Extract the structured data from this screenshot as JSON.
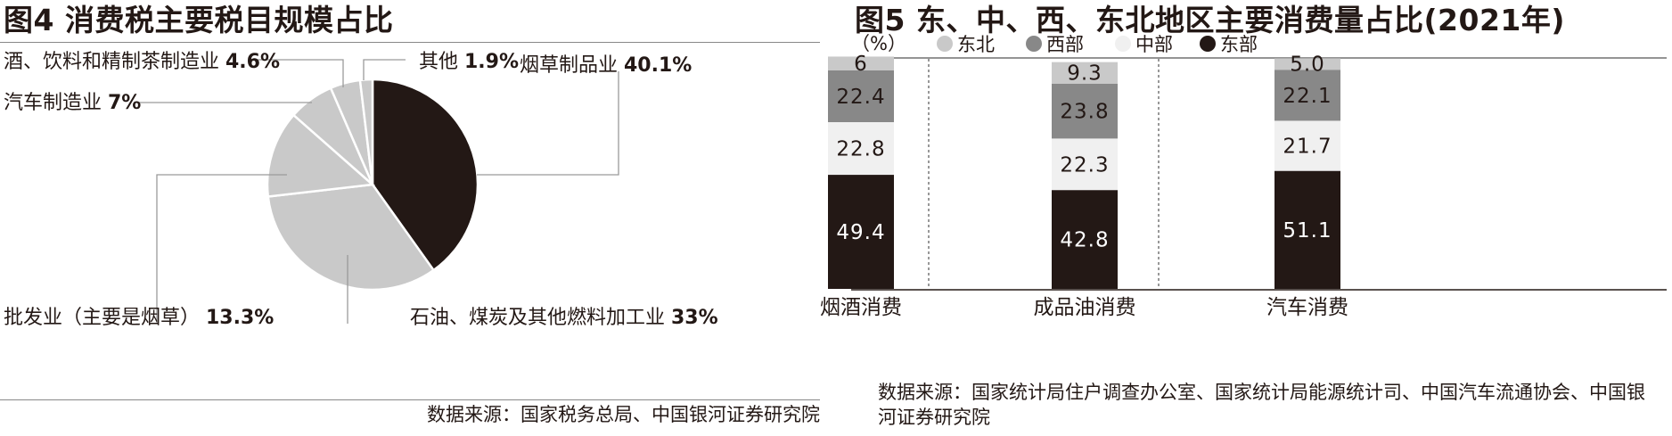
{
  "chart_data": [
    {
      "type": "pie",
      "title": "图4 消费税主要税目规模占比",
      "slices": [
        {
          "name": "烟草制品业",
          "value": 40.1,
          "label": "40.1%",
          "color": "#231815"
        },
        {
          "name": "石油、煤炭及其他燃料加工业",
          "value": 33,
          "label": "33%",
          "color": "#c9c9c9"
        },
        {
          "name": "批发业（主要是烟草）",
          "value": 13.3,
          "label": "13.3%",
          "color": "#c9c9c9"
        },
        {
          "name": "汽车制造业",
          "value": 7,
          "label": "7%",
          "color": "#c9c9c9"
        },
        {
          "name": "酒、饮料和精制茶制造业",
          "value": 4.6,
          "label": "4.6%",
          "color": "#c9c9c9"
        },
        {
          "name": "其他",
          "value": 1.9,
          "label": "1.9%",
          "color": "#c9c9c9"
        }
      ],
      "source": "数据来源：国家税务总局、中国银河证券研究院"
    },
    {
      "type": "bar",
      "stacked": true,
      "title": "图5 东、中、西、东北地区主要消费量占比(2021年)",
      "unit": "（%）",
      "categories": [
        "烟酒消费",
        "成品油消费",
        "汽车消费"
      ],
      "series": [
        {
          "name": "东部",
          "values": [
            49.4,
            42.8,
            51.1
          ],
          "labels": [
            "49.4",
            "42.8",
            "51.1"
          ],
          "color": "#231815",
          "text_color": "#ffffff"
        },
        {
          "name": "中部",
          "values": [
            22.8,
            22.3,
            21.7
          ],
          "labels": [
            "22.8",
            "22.3",
            "21.7"
          ],
          "color": "#f0f0f0",
          "text_color": "#231815"
        },
        {
          "name": "西部",
          "values": [
            22.4,
            23.8,
            22.1
          ],
          "labels": [
            "22.4",
            "23.8",
            "22.1"
          ],
          "color": "#888888",
          "text_color": "#231815"
        },
        {
          "name": "东北",
          "values": [
            6,
            9.3,
            5.0
          ],
          "labels": [
            "6",
            "9.3",
            "5.0"
          ],
          "color": "#c9c9c9",
          "text_color": "#231815"
        }
      ],
      "legend_order": [
        "东北",
        "西部",
        "中部",
        "东部"
      ],
      "ylim": [
        0,
        100
      ],
      "source": "数据来源：国家统计局住户调查办公室、国家统计局能源统计司、中国汽车流通协会、中国银河证券研究院"
    }
  ]
}
